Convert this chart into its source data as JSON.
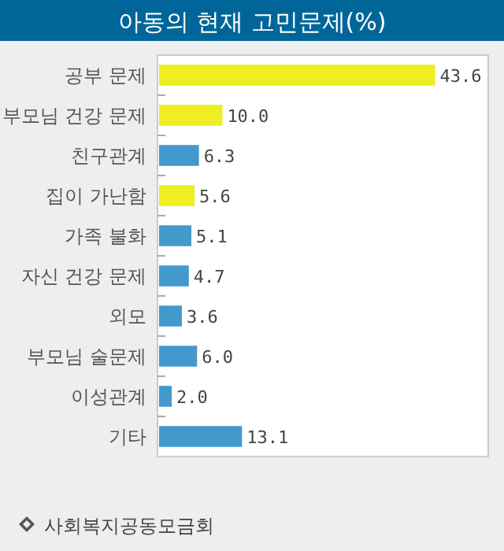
{
  "chart_data": {
    "type": "bar",
    "orientation": "horizontal",
    "title": "아동의 현재 고민문제(%)",
    "categories": [
      "공부 문제",
      "부모님 건강 문제",
      "친구관계",
      "집이 가난함",
      "가족 불화",
      "자신 건강 문제",
      "외모",
      "부모님 술문제",
      "이성관계",
      "기타"
    ],
    "values": [
      43.6,
      10.0,
      6.3,
      5.6,
      5.1,
      4.7,
      3.6,
      6.0,
      2.0,
      13.1
    ],
    "colors": [
      "#eeee22",
      "#eeee22",
      "#4499cc",
      "#eeee22",
      "#4499cc",
      "#4499cc",
      "#4499cc",
      "#4499cc",
      "#4499cc",
      "#4499cc"
    ],
    "value_labels": [
      "43.6",
      "10.0",
      "6.3",
      "5.6",
      "5.1",
      "4.7",
      "3.6",
      "6.0",
      "2.0",
      "13.1"
    ],
    "xlim": [
      0,
      52
    ],
    "tick_labels": "y",
    "annotations": [
      "사회복지공동모금회"
    ]
  }
}
